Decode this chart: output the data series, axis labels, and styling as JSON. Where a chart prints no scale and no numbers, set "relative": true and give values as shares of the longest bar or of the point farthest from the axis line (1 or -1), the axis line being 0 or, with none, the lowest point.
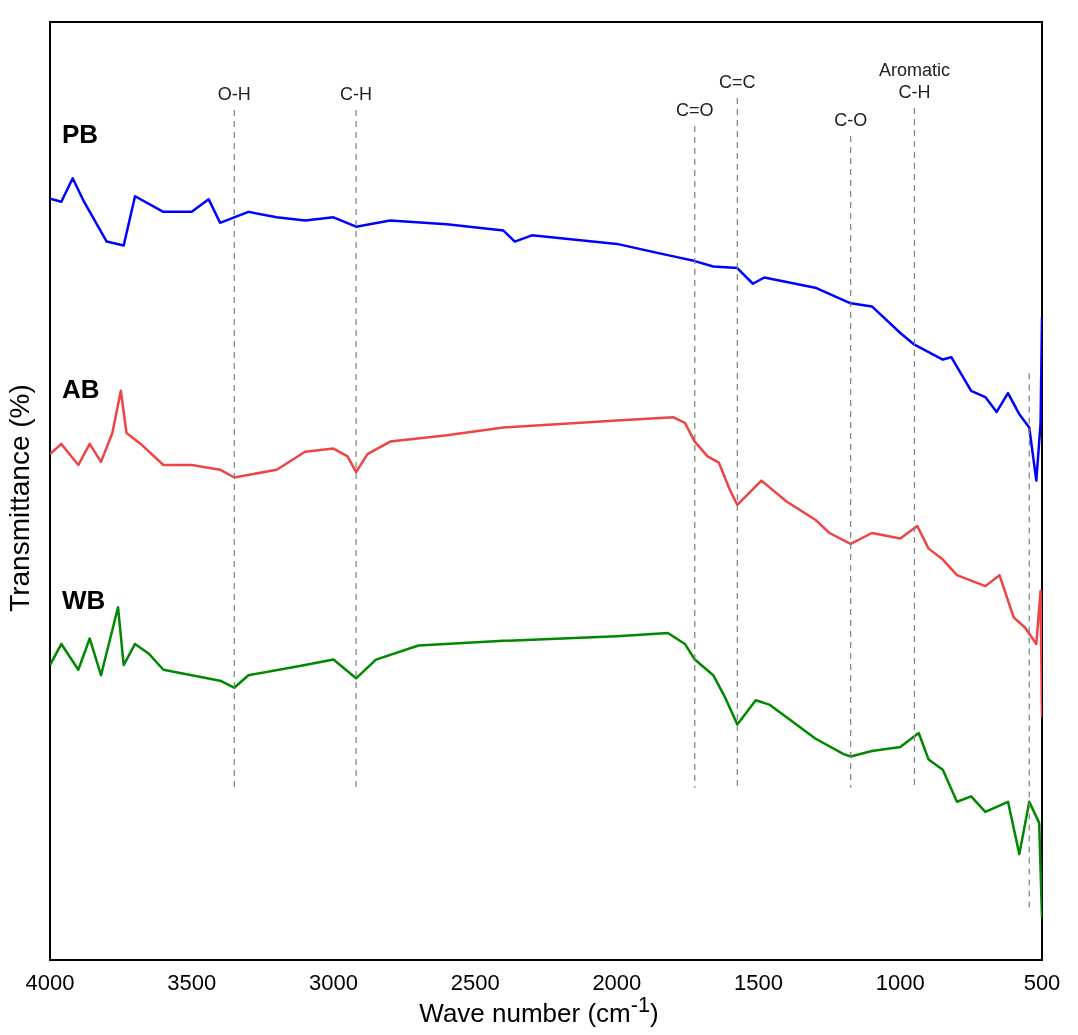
{
  "chart_data": {
    "type": "line",
    "xlabel": "Wave number (cm$^{-1}$)",
    "ylabel": "Transmittance (%)",
    "relative": true,
    "legend": false,
    "grid": false,
    "marker": "none",
    "xlim": [
      4000,
      500
    ],
    "xticks": [
      4000,
      3500,
      3000,
      2500,
      2000,
      1500,
      1000,
      500
    ],
    "x": [
      4000,
      3960,
      3920,
      3880,
      3800,
      3740,
      3700,
      3600,
      3500,
      3440,
      3400,
      3300,
      3200,
      3100,
      3000,
      2920,
      2800,
      2600,
      2400,
      2360,
      2300,
      2000,
      1800,
      1725,
      1660,
      1575,
      1520,
      1480,
      1300,
      1175,
      1100,
      1000,
      950,
      850,
      820,
      750,
      700,
      660,
      620,
      580,
      545,
      520,
      505,
      500
    ],
    "series": [
      {
        "name": "PB",
        "color": "#0000ff",
        "values": [
          0.974,
          0.97,
          1.0,
          0.97,
          0.919,
          0.914,
          0.977,
          0.957,
          0.957,
          0.973,
          0.943,
          0.957,
          0.95,
          0.946,
          0.95,
          0.938,
          0.946,
          0.941,
          0.933,
          0.919,
          0.927,
          0.916,
          0.9,
          0.894,
          0.887,
          0.885,
          0.865,
          0.873,
          0.86,
          0.84,
          0.836,
          0.802,
          0.787,
          0.768,
          0.771,
          0.728,
          0.72,
          0.701,
          0.725,
          0.698,
          0.681,
          0.613,
          0.687,
          0.822
        ]
      },
      {
        "name": "AB",
        "color": "#ee4444",
        "x": [
          4000,
          3960,
          3900,
          3860,
          3820,
          3780,
          3750,
          3730,
          3680,
          3600,
          3500,
          3400,
          3350,
          3200,
          3100,
          3000,
          2950,
          2920,
          2880,
          2800,
          2600,
          2400,
          2000,
          1800,
          1760,
          1725,
          1680,
          1640,
          1600,
          1575,
          1490,
          1400,
          1300,
          1250,
          1175,
          1100,
          1000,
          940,
          900,
          850,
          800,
          700,
          650,
          600,
          560,
          520,
          505,
          500
        ],
        "values": [
          0.647,
          0.66,
          0.633,
          0.66,
          0.637,
          0.674,
          0.728,
          0.674,
          0.66,
          0.633,
          0.633,
          0.627,
          0.617,
          0.627,
          0.65,
          0.654,
          0.644,
          0.624,
          0.647,
          0.663,
          0.671,
          0.681,
          0.69,
          0.694,
          0.687,
          0.663,
          0.644,
          0.636,
          0.6,
          0.582,
          0.613,
          0.586,
          0.563,
          0.546,
          0.532,
          0.546,
          0.539,
          0.555,
          0.526,
          0.512,
          0.492,
          0.478,
          0.492,
          0.438,
          0.425,
          0.404,
          0.472,
          0.31
        ]
      },
      {
        "name": "WB",
        "color": "#008800",
        "x": [
          4000,
          3960,
          3900,
          3860,
          3820,
          3760,
          3740,
          3700,
          3650,
          3600,
          3500,
          3400,
          3350,
          3300,
          3100,
          3000,
          2920,
          2850,
          2700,
          2400,
          2000,
          1820,
          1760,
          1725,
          1660,
          1620,
          1575,
          1510,
          1460,
          1400,
          1300,
          1200,
          1175,
          1100,
          1000,
          935,
          900,
          850,
          800,
          750,
          700,
          620,
          580,
          545,
          510,
          500
        ],
        "values": [
          0.377,
          0.404,
          0.371,
          0.411,
          0.364,
          0.451,
          0.377,
          0.404,
          0.391,
          0.371,
          0.364,
          0.357,
          0.348,
          0.364,
          0.377,
          0.384,
          0.36,
          0.384,
          0.402,
          0.408,
          0.414,
          0.418,
          0.404,
          0.384,
          0.364,
          0.337,
          0.301,
          0.332,
          0.326,
          0.31,
          0.283,
          0.263,
          0.26,
          0.267,
          0.272,
          0.29,
          0.256,
          0.243,
          0.202,
          0.209,
          0.189,
          0.202,
          0.135,
          0.202,
          0.175,
          0.054
        ]
      }
    ],
    "ref_lines": [
      {
        "axis": "x",
        "value": 3350,
        "label": "O-H",
        "line_style": "dashed",
        "color": "#808080"
      },
      {
        "axis": "x",
        "value": 2920,
        "label": "C-H",
        "line_style": "dashed",
        "color": "#808080"
      },
      {
        "axis": "x",
        "value": 1725,
        "label": "C=O",
        "line_style": "dashed",
        "color": "#808080"
      },
      {
        "axis": "x",
        "value": 1575,
        "label": "C=C",
        "line_style": "dashed",
        "color": "#808080"
      },
      {
        "axis": "x",
        "value": 1175,
        "label": "C-O",
        "line_style": "dashed",
        "color": "#808080"
      },
      {
        "axis": "x",
        "value": 950,
        "label": "Aromatic C-H",
        "line_style": "dashed",
        "color": "#808080"
      },
      {
        "axis": "x",
        "value": 545,
        "line_style": "dashed",
        "color": "#808080"
      }
    ]
  }
}
